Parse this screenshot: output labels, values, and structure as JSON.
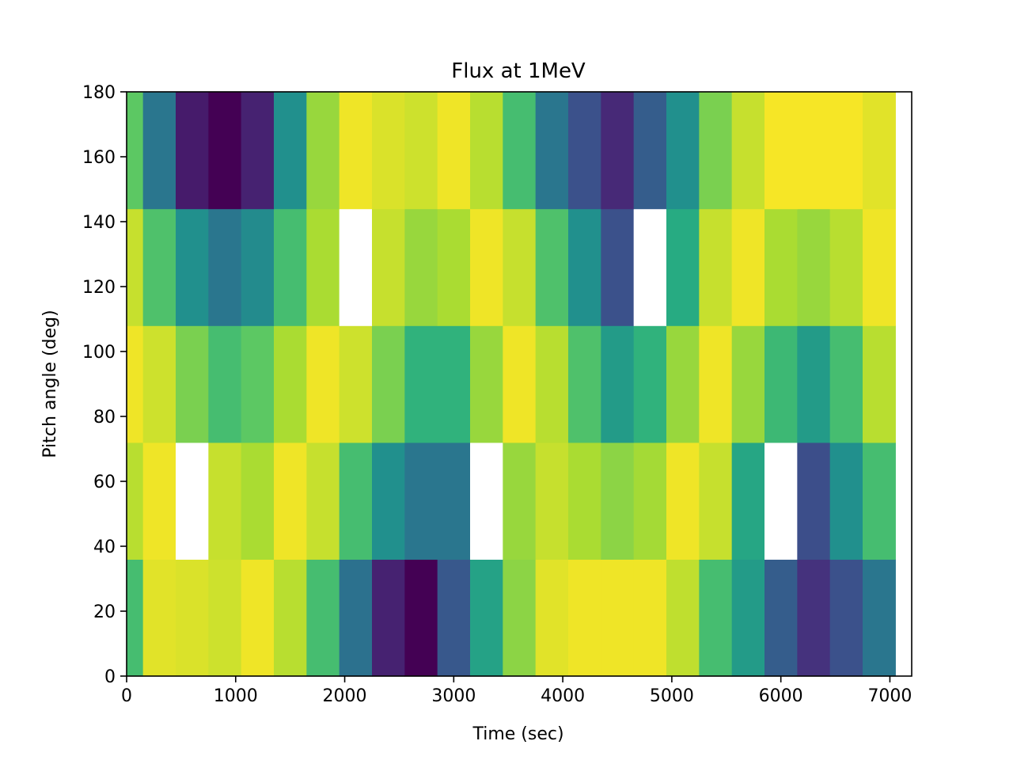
{
  "chart_data": {
    "type": "heatmap",
    "title": "Flux at 1MeV",
    "xlabel": "Time (sec)",
    "ylabel": "Pitch angle (deg)",
    "xlim": [
      0,
      7200
    ],
    "ylim": [
      0,
      180
    ],
    "xticks": [
      0,
      1000,
      2000,
      3000,
      4000,
      5000,
      6000,
      7000
    ],
    "yticks": [
      0,
      20,
      40,
      60,
      80,
      100,
      120,
      140,
      160,
      180
    ],
    "x_edges": [
      0,
      150,
      450,
      750,
      1050,
      1350,
      1650,
      1950,
      2250,
      2550,
      2850,
      3150,
      3450,
      3750,
      4050,
      4350,
      4650,
      4950,
      5250,
      5550,
      5850,
      6150,
      6450,
      6750,
      7050
    ],
    "y_edges": [
      0,
      36,
      72,
      108,
      144,
      180
    ],
    "colormap": "viridis",
    "missing_color": "#ffffff",
    "values": [
      [
        0.7,
        0.96,
        0.95,
        0.93,
        0.98,
        0.9,
        0.7,
        0.38,
        0.1,
        0.0,
        0.28,
        0.58,
        0.83,
        0.96,
        0.98,
        0.98,
        0.98,
        0.91,
        0.7,
        0.55,
        0.3,
        0.15,
        0.25,
        0.4
      ],
      [
        0.9,
        0.98,
        null,
        0.92,
        0.88,
        0.98,
        0.92,
        0.7,
        0.5,
        0.4,
        0.4,
        null,
        0.85,
        0.92,
        0.88,
        0.83,
        0.87,
        0.98,
        0.92,
        0.6,
        null,
        0.24,
        0.5,
        0.7
      ],
      [
        0.98,
        0.93,
        0.8,
        0.7,
        0.75,
        0.88,
        0.98,
        0.93,
        0.8,
        0.65,
        0.65,
        0.85,
        0.98,
        0.9,
        0.72,
        0.55,
        0.65,
        0.85,
        0.98,
        0.85,
        0.68,
        0.55,
        0.7,
        0.9
      ],
      [
        0.92,
        0.72,
        0.5,
        0.4,
        0.48,
        0.7,
        0.88,
        null,
        0.92,
        0.85,
        0.88,
        0.98,
        0.92,
        0.72,
        0.5,
        0.25,
        null,
        0.62,
        0.92,
        0.98,
        0.88,
        0.85,
        0.9,
        0.98
      ],
      [
        0.75,
        0.4,
        0.08,
        0.0,
        0.1,
        0.5,
        0.85,
        0.98,
        0.95,
        0.93,
        0.98,
        0.9,
        0.7,
        0.4,
        0.25,
        0.12,
        0.3,
        0.5,
        0.8,
        0.92,
        0.99,
        0.99,
        0.99,
        0.96
      ]
    ]
  }
}
